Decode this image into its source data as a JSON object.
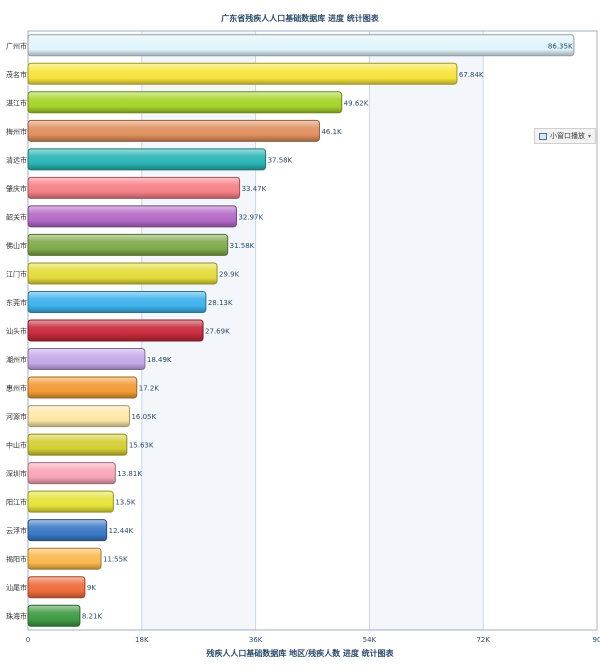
{
  "chart_data": {
    "type": "bar",
    "orientation": "horizontal",
    "title": "广东省残疾人人口基础数据库 进度 统计图表",
    "xlabel": "残疾人人口基础数据库 地区/残疾人数 进度 统计图表",
    "ylabel": "",
    "xlim": [
      0,
      90000
    ],
    "x_ticks": [
      "0",
      "18K",
      "36K",
      "54K",
      "72K",
      "90"
    ],
    "grid": true,
    "categories": [
      "广州市",
      "茂名市",
      "湛江市",
      "梅州市",
      "清远市",
      "肇庆市",
      "韶关市",
      "佛山市",
      "江门市",
      "东莞市",
      "汕头市",
      "潮州市",
      "惠州市",
      "河源市",
      "中山市",
      "深圳市",
      "阳江市",
      "云浮市",
      "揭阳市",
      "汕尾市",
      "珠海市"
    ],
    "values": [
      86350,
      67840,
      49620,
      46100,
      37580,
      33470,
      32970,
      31580,
      29900,
      28130,
      27690,
      18490,
      17200,
      16050,
      15630,
      13810,
      13500,
      12440,
      11550,
      9000,
      8210
    ],
    "value_labels": [
      "86.35K",
      "67.84K",
      "49.62K",
      "46.1K",
      "37.58K",
      "33.47K",
      "32.97K",
      "31.58K",
      "29.9K",
      "28.13K",
      "27.69K",
      "18.49K",
      "17.2K",
      "16.05K",
      "15.63K",
      "13.81K",
      "13.5K",
      "12.44K",
      "11.55K",
      "9K",
      "8.21K"
    ],
    "colors": [
      "#dff4fb",
      "#f7e43a",
      "#a4d42a",
      "#e0905e",
      "#2ab5b5",
      "#f57f86",
      "#b46ac7",
      "#7fa94a",
      "#e3dc3a",
      "#3db2ec",
      "#c4293a",
      "#c5a8e8",
      "#f29a34",
      "#fde7a8",
      "#d3cf33",
      "#f8a5b8",
      "#e5e239",
      "#3a78c4",
      "#fbb94d",
      "#ef6b3c",
      "#3f9a43"
    ]
  },
  "widget": {
    "label": "小窗口播放",
    "icon": "window-icon",
    "caret": "▾"
  }
}
